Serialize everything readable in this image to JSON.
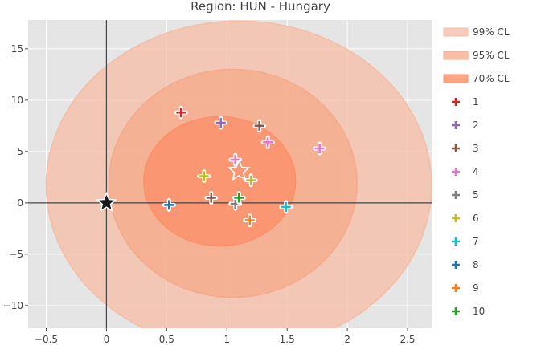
{
  "chart_data": {
    "type": "scatter",
    "title": "Region: HUN - Hungary",
    "xlabel": "",
    "ylabel": "",
    "xlim": [
      -0.65,
      2.7
    ],
    "ylim": [
      -12.2,
      17.8
    ],
    "x_ticks": [
      -0.5,
      0,
      0.5,
      1,
      1.5,
      2,
      2.5
    ],
    "x_tick_labels": [
      "−0.5",
      "0",
      "0.5",
      "1",
      "1.5",
      "2",
      "2.5"
    ],
    "y_ticks": [
      -10,
      -5,
      0,
      5,
      10,
      15
    ],
    "y_tick_labels": [
      "−10",
      "−5",
      "0",
      "5",
      "10",
      "15"
    ],
    "grid": true,
    "background": "#e5e5e5",
    "legend_position": "right",
    "confidence_regions": [
      {
        "name": "99% CL",
        "center": [
          1.1,
          1.7
        ],
        "rx": 1.6,
        "ry": 16.0,
        "color": "#f6bca4",
        "opacity": 0.75
      },
      {
        "name": "95% CL",
        "center": [
          1.05,
          1.9
        ],
        "rx": 1.03,
        "ry": 11.1,
        "color": "#f6a98a",
        "opacity": 0.75
      },
      {
        "name": "70% CL",
        "center": [
          0.94,
          2.1
        ],
        "rx": 0.63,
        "ry": 6.3,
        "color": "#fb9068",
        "opacity": 0.8
      }
    ],
    "series": [
      {
        "name": "1",
        "color": "#d62728",
        "x": [
          0.62
        ],
        "y": [
          8.8
        ]
      },
      {
        "name": "2",
        "color": "#9467bd",
        "x": [
          0.95
        ],
        "y": [
          7.8
        ]
      },
      {
        "name": "3",
        "color": "#8c564b",
        "x": [
          1.27,
          0.87
        ],
        "y": [
          7.5,
          0.5
        ]
      },
      {
        "name": "4",
        "color": "#e377c2",
        "x": [
          1.34,
          1.77,
          1.07
        ],
        "y": [
          5.9,
          5.3,
          4.2
        ]
      },
      {
        "name": "5",
        "color": "#7f7f7f",
        "x": [
          1.07
        ],
        "y": [
          -0.1
        ]
      },
      {
        "name": "6",
        "color": "#bcbd22",
        "x": [
          0.81,
          1.2
        ],
        "y": [
          2.6,
          2.2
        ]
      },
      {
        "name": "7",
        "color": "#17becf",
        "x": [
          1.49
        ],
        "y": [
          -0.4
        ]
      },
      {
        "name": "8",
        "color": "#1f77b4",
        "x": [
          0.52
        ],
        "y": [
          -0.2
        ]
      },
      {
        "name": "9",
        "color": "#ff7f0e",
        "x": [
          1.19
        ],
        "y": [
          -1.7
        ]
      },
      {
        "name": "10",
        "color": "#2ca02c",
        "x": [
          1.1
        ],
        "y": [
          0.5
        ]
      }
    ],
    "reference_point": {
      "x": 0,
      "y": 0,
      "color": "#1a1a1a"
    },
    "mean_point": {
      "x": 1.1,
      "y": 3.1
    }
  }
}
